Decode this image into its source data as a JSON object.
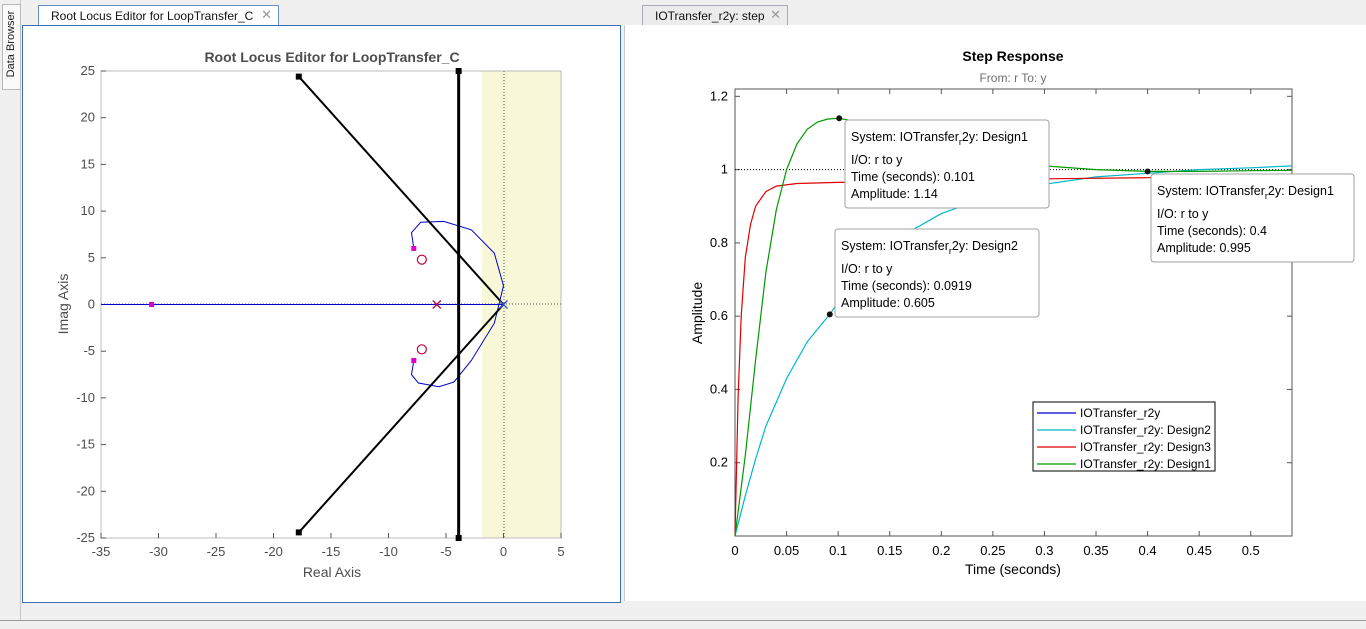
{
  "sidebar": {
    "data_browser_label": "Data Browser"
  },
  "tabs": [
    {
      "label": "Root Locus Editor for LoopTransfer_C"
    },
    {
      "label": "IOTransfer_r2y: step"
    }
  ],
  "root_locus": {
    "title": "Root Locus Editor for LoopTransfer_C",
    "xlabel": "Real Axis",
    "ylabel": "Imag Axis",
    "xticks": [
      "-35",
      "-30",
      "-25",
      "-20",
      "-15",
      "-10",
      "-5",
      "0",
      "5"
    ],
    "yticks": [
      "25",
      "20",
      "15",
      "10",
      "5",
      "0",
      "-5",
      "-10",
      "-15",
      "-20",
      "-25"
    ]
  },
  "step": {
    "title": "Step Response",
    "subtitle": "From: r  To: y",
    "xlabel": "Time (seconds)",
    "ylabel": "Amplitude",
    "xticks": [
      "0",
      "0.05",
      "0.1",
      "0.15",
      "0.2",
      "0.25",
      "0.3",
      "0.35",
      "0.4",
      "0.45",
      "0.5"
    ],
    "yticks": [
      "1.2",
      "1",
      "0.8",
      "0.6",
      "0.4",
      "0.2"
    ],
    "legend": [
      {
        "label": "IOTransfer_r2y",
        "color": "#0000cc"
      },
      {
        "label": "IOTransfer_r2y: Design2",
        "color": "#00b8c8"
      },
      {
        "label": "IOTransfer_r2y: Design3",
        "color": "#e00000"
      },
      {
        "label": "IOTransfer_r2y: Design1",
        "color": "#009900"
      }
    ],
    "datatips": [
      {
        "sys_prefix": "System: IOTransfer",
        "sys_sub": "r",
        "sys_suffix": "2y: Design1",
        "io": "I/O: r to y",
        "time": "Time (seconds): 0.101",
        "amp": "Amplitude: 1.14"
      },
      {
        "sys_prefix": "System: IOTransfer",
        "sys_sub": "r",
        "sys_suffix": "2y: Design2",
        "io": "I/O: r to y",
        "time": "Time (seconds): 0.0919",
        "amp": "Amplitude: 0.605"
      },
      {
        "sys_prefix": "System: IOTransfer",
        "sys_sub": "r",
        "sys_suffix": "2y: Design1",
        "io": "I/O: r to y",
        "time": "Time (seconds): 0.4",
        "amp": "Amplitude: 0.995"
      }
    ]
  },
  "chart_data": [
    {
      "type": "line",
      "title": "Root Locus Editor for LoopTransfer_C",
      "xlabel": "Real Axis",
      "ylabel": "Imag Axis",
      "xlim": [
        -35,
        5
      ],
      "ylim": [
        -25,
        25
      ],
      "grid": false,
      "open_loop_poles": [
        [
          -5.8,
          0
        ],
        [
          -7.1,
          4.8
        ],
        [
          -7.1,
          -4.8
        ],
        [
          0,
          0
        ]
      ],
      "open_loop_zeros": [
        [
          -7.1,
          4.8
        ],
        [
          -7.1,
          -4.8
        ]
      ],
      "closed_loop_poles": [
        [
          -30.6,
          0
        ],
        [
          -7.8,
          6.0
        ],
        [
          -7.8,
          -6.0
        ]
      ],
      "locus_branches": [
        {
          "name": "real-axis",
          "x": [
            -35,
            0
          ],
          "y": [
            0,
            0
          ]
        },
        {
          "name": "upper-arc",
          "x": [
            -7.8,
            -8.0,
            -7.2,
            -5.2,
            -2.8,
            -0.8,
            0,
            -0.8,
            -2.8,
            -4.3
          ],
          "y": [
            6.0,
            7.7,
            8.8,
            8.9,
            8.0,
            5.5,
            2.0,
            -2.0,
            -6.0,
            -8.3
          ]
        },
        {
          "name": "lower-arc",
          "x": [
            -7.8,
            -8.0,
            -7.4,
            -5.6,
            -4.3
          ],
          "y": [
            -6.0,
            -7.5,
            -8.4,
            -8.8,
            -8.3
          ]
        }
      ],
      "design_constraints": [
        {
          "name": "damping-ratio",
          "lines": [
            [
              [
                0,
                0
              ],
              [
                -17.8,
                24.4
              ]
            ],
            [
              [
                0,
                0
              ],
              [
                -17.8,
                -24.4
              ]
            ]
          ]
        },
        {
          "name": "settling-time",
          "x": -3.9
        }
      ]
    },
    {
      "type": "line",
      "title": "Step Response",
      "subtitle": "From: r  To: y",
      "xlabel": "Time (seconds)",
      "ylabel": "Amplitude",
      "xlim": [
        0,
        0.54
      ],
      "ylim": [
        0,
        1.22
      ],
      "grid": false,
      "reference_line": 1,
      "legend_position": "bottom-right",
      "series": [
        {
          "name": "IOTransfer_r2y: Design2",
          "x": [
            0,
            0.01,
            0.02,
            0.03,
            0.05,
            0.07,
            0.0919,
            0.12,
            0.15,
            0.2,
            0.25,
            0.3,
            0.35,
            0.4,
            0.45,
            0.5,
            0.54
          ],
          "y": [
            0,
            0.11,
            0.21,
            0.3,
            0.43,
            0.53,
            0.605,
            0.72,
            0.8,
            0.88,
            0.93,
            0.96,
            0.98,
            0.99,
            1.0,
            1.005,
            1.01
          ]
        },
        {
          "name": "IOTransfer_r2y: Design3",
          "x": [
            0,
            0.003,
            0.006,
            0.01,
            0.015,
            0.02,
            0.03,
            0.04,
            0.06,
            0.1,
            0.2,
            0.3,
            0.4,
            0.5,
            0.54
          ],
          "y": [
            0,
            0.38,
            0.6,
            0.76,
            0.85,
            0.9,
            0.94,
            0.955,
            0.962,
            0.965,
            0.97,
            0.975,
            0.978,
            0.98,
            0.98
          ]
        },
        {
          "name": "IOTransfer_r2y: Design1",
          "x": [
            0,
            0.01,
            0.02,
            0.03,
            0.04,
            0.05,
            0.06,
            0.07,
            0.08,
            0.09,
            0.101,
            0.12,
            0.15,
            0.2,
            0.25,
            0.3,
            0.35,
            0.4,
            0.45,
            0.5,
            0.54
          ],
          "y": [
            0,
            0.22,
            0.48,
            0.72,
            0.89,
            1.0,
            1.07,
            1.11,
            1.13,
            1.138,
            1.14,
            1.13,
            1.1,
            1.06,
            1.03,
            1.01,
            1.0,
            0.995,
            0.995,
            0.997,
            0.998
          ]
        }
      ],
      "datatip_points": [
        {
          "series": "IOTransfer_r2y: Design1",
          "x": 0.101,
          "y": 1.14
        },
        {
          "series": "IOTransfer_r2y: Design2",
          "x": 0.0919,
          "y": 0.605
        },
        {
          "series": "IOTransfer_r2y: Design1",
          "x": 0.4,
          "y": 0.995
        }
      ]
    }
  ]
}
